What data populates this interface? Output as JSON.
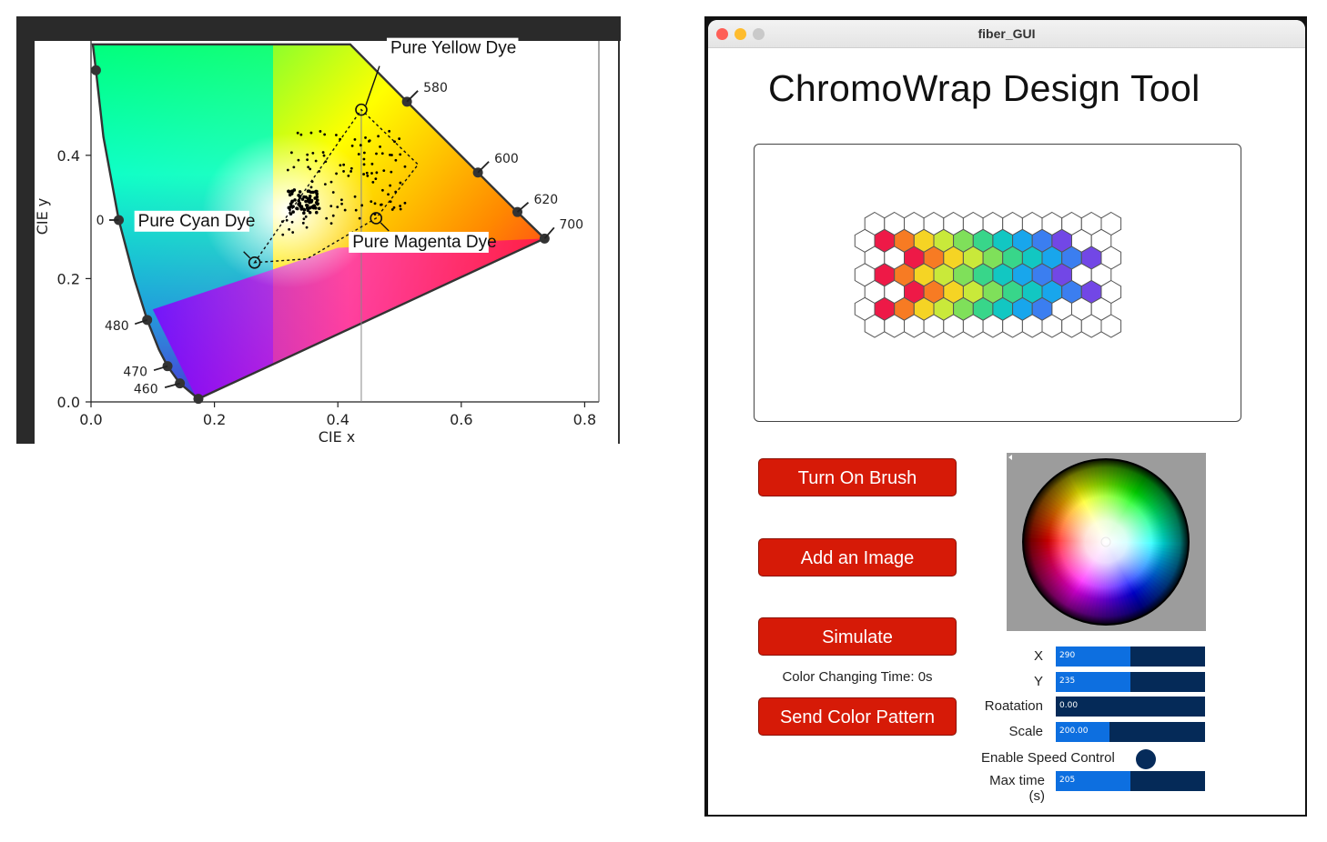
{
  "chart_data": {
    "type": "scatter",
    "xlabel": "CIE x",
    "ylabel": "CIE y",
    "xlim": [
      0.0,
      0.82
    ],
    "ylim": [
      0.0,
      0.58
    ],
    "x_ticks": [
      "0.0",
      "0.2",
      "0.4",
      "0.6",
      "0.8"
    ],
    "y_ticks": [
      "0.0",
      "0.2",
      "0.4"
    ],
    "locus": [
      {
        "label": "",
        "x": 0.008,
        "y": 0.538
      },
      {
        "label": "0",
        "x": 0.045,
        "y": 0.295
      },
      {
        "label": "480",
        "x": 0.091,
        "y": 0.133
      },
      {
        "label": "470",
        "x": 0.124,
        "y": 0.058
      },
      {
        "label": "460",
        "x": 0.144,
        "y": 0.03
      },
      {
        "label": "",
        "x": 0.174,
        "y": 0.005
      },
      {
        "label": "580",
        "x": 0.512,
        "y": 0.487
      },
      {
        "label": "600",
        "x": 0.627,
        "y": 0.372
      },
      {
        "label": "620",
        "x": 0.691,
        "y": 0.308
      },
      {
        "label": "700",
        "x": 0.735,
        "y": 0.265
      }
    ],
    "annotations": [
      {
        "text": "Pure Yellow Dye",
        "x": 0.438,
        "y": 0.474
      },
      {
        "text": "Pure Cyan Dye",
        "x": 0.265,
        "y": 0.226
      },
      {
        "text": "Pure Magenta Dye",
        "x": 0.462,
        "y": 0.298
      }
    ],
    "gamut": [
      [
        0.265,
        0.226
      ],
      [
        0.438,
        0.474
      ],
      [
        0.53,
        0.385
      ],
      [
        0.462,
        0.298
      ],
      [
        0.35,
        0.232
      ]
    ],
    "grid": false
  },
  "app": {
    "window_title": "fiber_GUI",
    "heading": "ChromoWrap Design Tool",
    "buttons": {
      "brush": "Turn On Brush",
      "image": "Add an Image",
      "simulate": "Simulate",
      "send": "Send Color Pattern"
    },
    "color_time": "Color Changing Time: 0s",
    "sliders": [
      {
        "label": "X",
        "value": "290",
        "fraction": 0.5
      },
      {
        "label": "Y",
        "value": "235",
        "fraction": 0.5
      },
      {
        "label": "Roatation",
        "value": "0.00",
        "fraction": 0.0
      },
      {
        "label": "Scale",
        "value": "200.00",
        "fraction": 0.36
      }
    ],
    "speed_control_label": "Enable Speed Control",
    "max_time": {
      "label": "Max time (s)",
      "value": "205",
      "fraction": 0.5
    },
    "colors": {
      "button": "#d61a07",
      "slider_track": "#052a58",
      "slider_fill": "#0d6fe0"
    }
  }
}
